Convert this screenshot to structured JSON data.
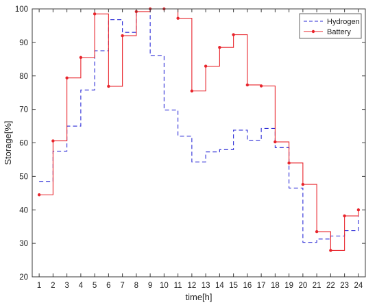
{
  "chart_data": {
    "type": "line",
    "title": "",
    "xlabel": "time[h]",
    "ylabel": "Storage[%]",
    "xlim": [
      0.5,
      24.5
    ],
    "ylim": [
      20,
      100
    ],
    "xticks": [
      "1",
      "2",
      "3",
      "4",
      "5",
      "6",
      "7",
      "8",
      "9",
      "10",
      "11",
      "12",
      "13",
      "14",
      "15",
      "16",
      "17",
      "18",
      "19",
      "20",
      "21",
      "22",
      "23",
      "24"
    ],
    "yticks": [
      "20",
      "30",
      "40",
      "50",
      "60",
      "70",
      "80",
      "90",
      "100"
    ],
    "grid": false,
    "legend_position": "top-right",
    "series": [
      {
        "name": "Hydrogen",
        "color": "#2b2bd6",
        "style": "dashed-step",
        "x": [
          1,
          2,
          3,
          4,
          5,
          6,
          7,
          8,
          9,
          10,
          11,
          12,
          13,
          14,
          15,
          16,
          17,
          18,
          19,
          20,
          21,
          22,
          23,
          24
        ],
        "values": [
          48.5,
          57.5,
          65.0,
          75.8,
          87.5,
          96.8,
          93.0,
          100.0,
          86.0,
          69.8,
          62.0,
          54.3,
          57.3,
          58.0,
          63.8,
          60.7,
          64.3,
          58.6,
          46.5,
          30.3,
          31.3,
          32.2,
          33.8,
          38.0
        ]
      },
      {
        "name": "Battery",
        "color": "#e8242b",
        "style": "solid-step-with-markers",
        "x": [
          1,
          2,
          3,
          4,
          5,
          6,
          7,
          8,
          9,
          10,
          11,
          12,
          13,
          14,
          15,
          16,
          17,
          18,
          19,
          20,
          21,
          22,
          23,
          24
        ],
        "values": [
          44.5,
          60.6,
          79.4,
          85.5,
          98.5,
          76.9,
          92.0,
          99.2,
          100.0,
          100.0,
          97.2,
          75.5,
          82.9,
          88.5,
          92.3,
          77.3,
          77.0,
          60.3,
          54.0,
          47.6,
          33.5,
          27.9,
          38.2,
          40.0
        ]
      }
    ]
  }
}
